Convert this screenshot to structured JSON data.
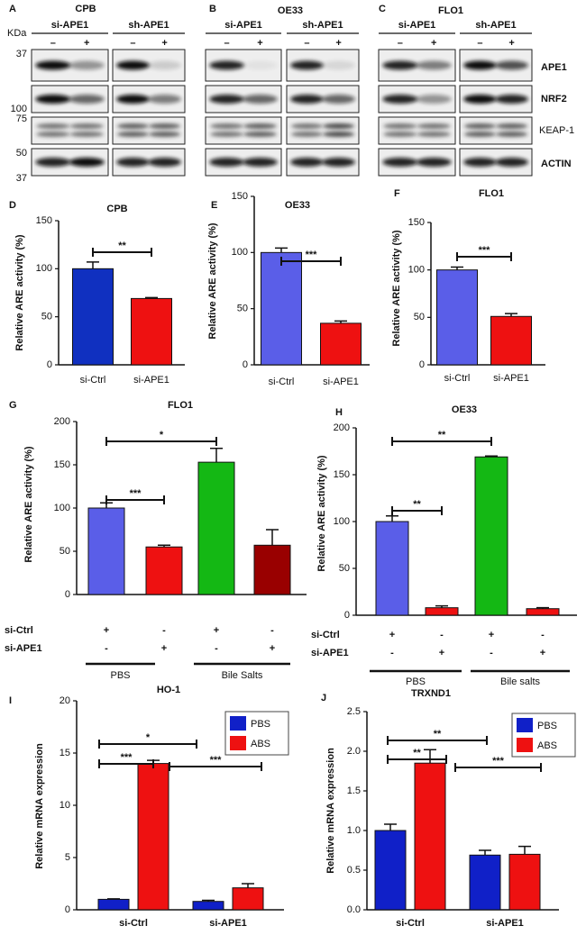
{
  "blots": {
    "panels": [
      {
        "letter": "A",
        "title": "CPB",
        "groups": [
          {
            "label": "si-APE1",
            "lanes": [
              "–",
              "+"
            ]
          },
          {
            "label": "sh-APE1",
            "lanes": [
              "–",
              "+"
            ]
          }
        ]
      },
      {
        "letter": "B",
        "title": "OE33",
        "groups": [
          {
            "label": "si-APE1",
            "lanes": [
              "–",
              "+"
            ]
          },
          {
            "label": "sh-APE1",
            "lanes": [
              "–",
              "+"
            ]
          }
        ]
      },
      {
        "letter": "C",
        "title": "FLO1",
        "groups": [
          {
            "label": "si-APE1",
            "lanes": [
              "–",
              "+"
            ]
          },
          {
            "label": "sh-APE1",
            "lanes": [
              "–",
              "+"
            ]
          }
        ]
      }
    ],
    "marker_unit": "KDa",
    "markers": [
      "37",
      "100",
      "75",
      "50",
      "37"
    ],
    "proteins": [
      "APE1",
      "NRF2",
      "KEAP-1",
      "ACTIN"
    ]
  },
  "chart_data": [
    {
      "type": "bar",
      "panel": "D",
      "title": "CPB",
      "ylabel": "Relative ARE activity (%)",
      "categories": [
        "si-Ctrl",
        "si-APE1"
      ],
      "values": [
        100,
        69
      ],
      "errors": [
        7,
        1
      ],
      "colors": [
        "#1030c0",
        "#ee1111"
      ],
      "ylim": [
        0,
        150
      ],
      "yticks": [
        0,
        50,
        100,
        150
      ],
      "annotations": [
        "**"
      ]
    },
    {
      "type": "bar",
      "panel": "E",
      "title": "OE33",
      "ylabel": "Relative ARE activity (%)",
      "categories": [
        "si-Ctrl",
        "si-APE1"
      ],
      "values": [
        100,
        37
      ],
      "errors": [
        4,
        2
      ],
      "colors": [
        "#5a5ee8",
        "#ee1111"
      ],
      "ylim": [
        0,
        150
      ],
      "yticks": [
        0,
        50,
        100,
        150
      ],
      "annotations": [
        "***"
      ]
    },
    {
      "type": "bar",
      "panel": "F",
      "title": "FLO1",
      "ylabel": "Relative ARE activity (%)",
      "categories": [
        "si-Ctrl",
        "si-APE1"
      ],
      "values": [
        100,
        51
      ],
      "errors": [
        3,
        3
      ],
      "colors": [
        "#5a5ee8",
        "#ee1111"
      ],
      "ylim": [
        0,
        150
      ],
      "yticks": [
        0,
        50,
        100,
        150
      ],
      "annotations": [
        "***"
      ]
    },
    {
      "type": "bar",
      "panel": "G",
      "title": "FLO1",
      "ylabel": "Relative ARE activity (%)",
      "values": [
        100,
        55,
        153,
        57
      ],
      "errors": [
        6,
        2,
        16,
        18
      ],
      "colors": [
        "#5a5ee8",
        "#ee1111",
        "#14b814",
        "#990000"
      ],
      "ylim": [
        0,
        200
      ],
      "yticks": [
        0,
        50,
        100,
        150,
        200
      ],
      "annotations": [
        "*",
        "***"
      ],
      "conditions": [
        {
          "label": "si-Ctrl",
          "marks": [
            "+",
            "-",
            "+",
            "-"
          ]
        },
        {
          "label": "si-APE1",
          "marks": [
            "-",
            "+",
            "-",
            "+"
          ]
        }
      ],
      "groups": [
        "PBS",
        "Bile Salts"
      ]
    },
    {
      "type": "bar",
      "panel": "H",
      "title": "OE33",
      "ylabel": "Relative ARE activity (%)",
      "values": [
        100,
        8,
        169,
        7
      ],
      "errors": [
        6,
        2,
        1,
        1
      ],
      "colors": [
        "#5a5ee8",
        "#ee1111",
        "#14b814",
        "#ee1111"
      ],
      "ylim": [
        0,
        200
      ],
      "yticks": [
        0,
        50,
        100,
        150,
        200
      ],
      "annotations": [
        "**",
        "**"
      ],
      "conditions": [
        {
          "label": "si-Ctrl",
          "marks": [
            "+",
            "-",
            "+",
            "-"
          ]
        },
        {
          "label": "si-APE1",
          "marks": [
            "-",
            "+",
            "-",
            "+"
          ]
        }
      ],
      "groups": [
        "PBS",
        "Bile salts"
      ]
    },
    {
      "type": "grouped_bar",
      "panel": "I",
      "title": "HO-1",
      "ylabel": "Relative mRNA expression",
      "categories": [
        "si-Ctrl",
        "si-APE1"
      ],
      "series": [
        {
          "name": "PBS",
          "color": "#1020c8",
          "values": [
            1,
            0.8
          ],
          "errors": [
            0.05,
            0.1
          ]
        },
        {
          "name": "ABS",
          "color": "#ee1111",
          "values": [
            14,
            2.1
          ],
          "errors": [
            0.3,
            0.4
          ]
        }
      ],
      "ylim": [
        0,
        20
      ],
      "yticks": [
        0,
        5,
        10,
        15,
        20
      ],
      "legend": "upper right",
      "annotations": [
        "*",
        "***",
        "***"
      ]
    },
    {
      "type": "grouped_bar",
      "panel": "J",
      "title": "TRXND1",
      "ylabel": "Relative mRNA expression",
      "categories": [
        "si-Ctrl",
        "si-APE1"
      ],
      "series": [
        {
          "name": "PBS",
          "color": "#1020c8",
          "values": [
            1.0,
            0.69
          ],
          "errors": [
            0.08,
            0.06
          ]
        },
        {
          "name": "ABS",
          "color": "#ee1111",
          "values": [
            1.85,
            0.7
          ],
          "errors": [
            0.17,
            0.1
          ]
        }
      ],
      "ylim": [
        0,
        2.5
      ],
      "yticks": [
        {
          "value": 0,
          "label": "0.0"
        },
        0.5,
        {
          "value": 1,
          "label": "1.0"
        },
        1.5,
        {
          "value": 2,
          "label": "2.0"
        },
        2.5
      ],
      "legend": "upper right",
      "annotations": [
        "**",
        "**",
        "***"
      ]
    }
  ]
}
